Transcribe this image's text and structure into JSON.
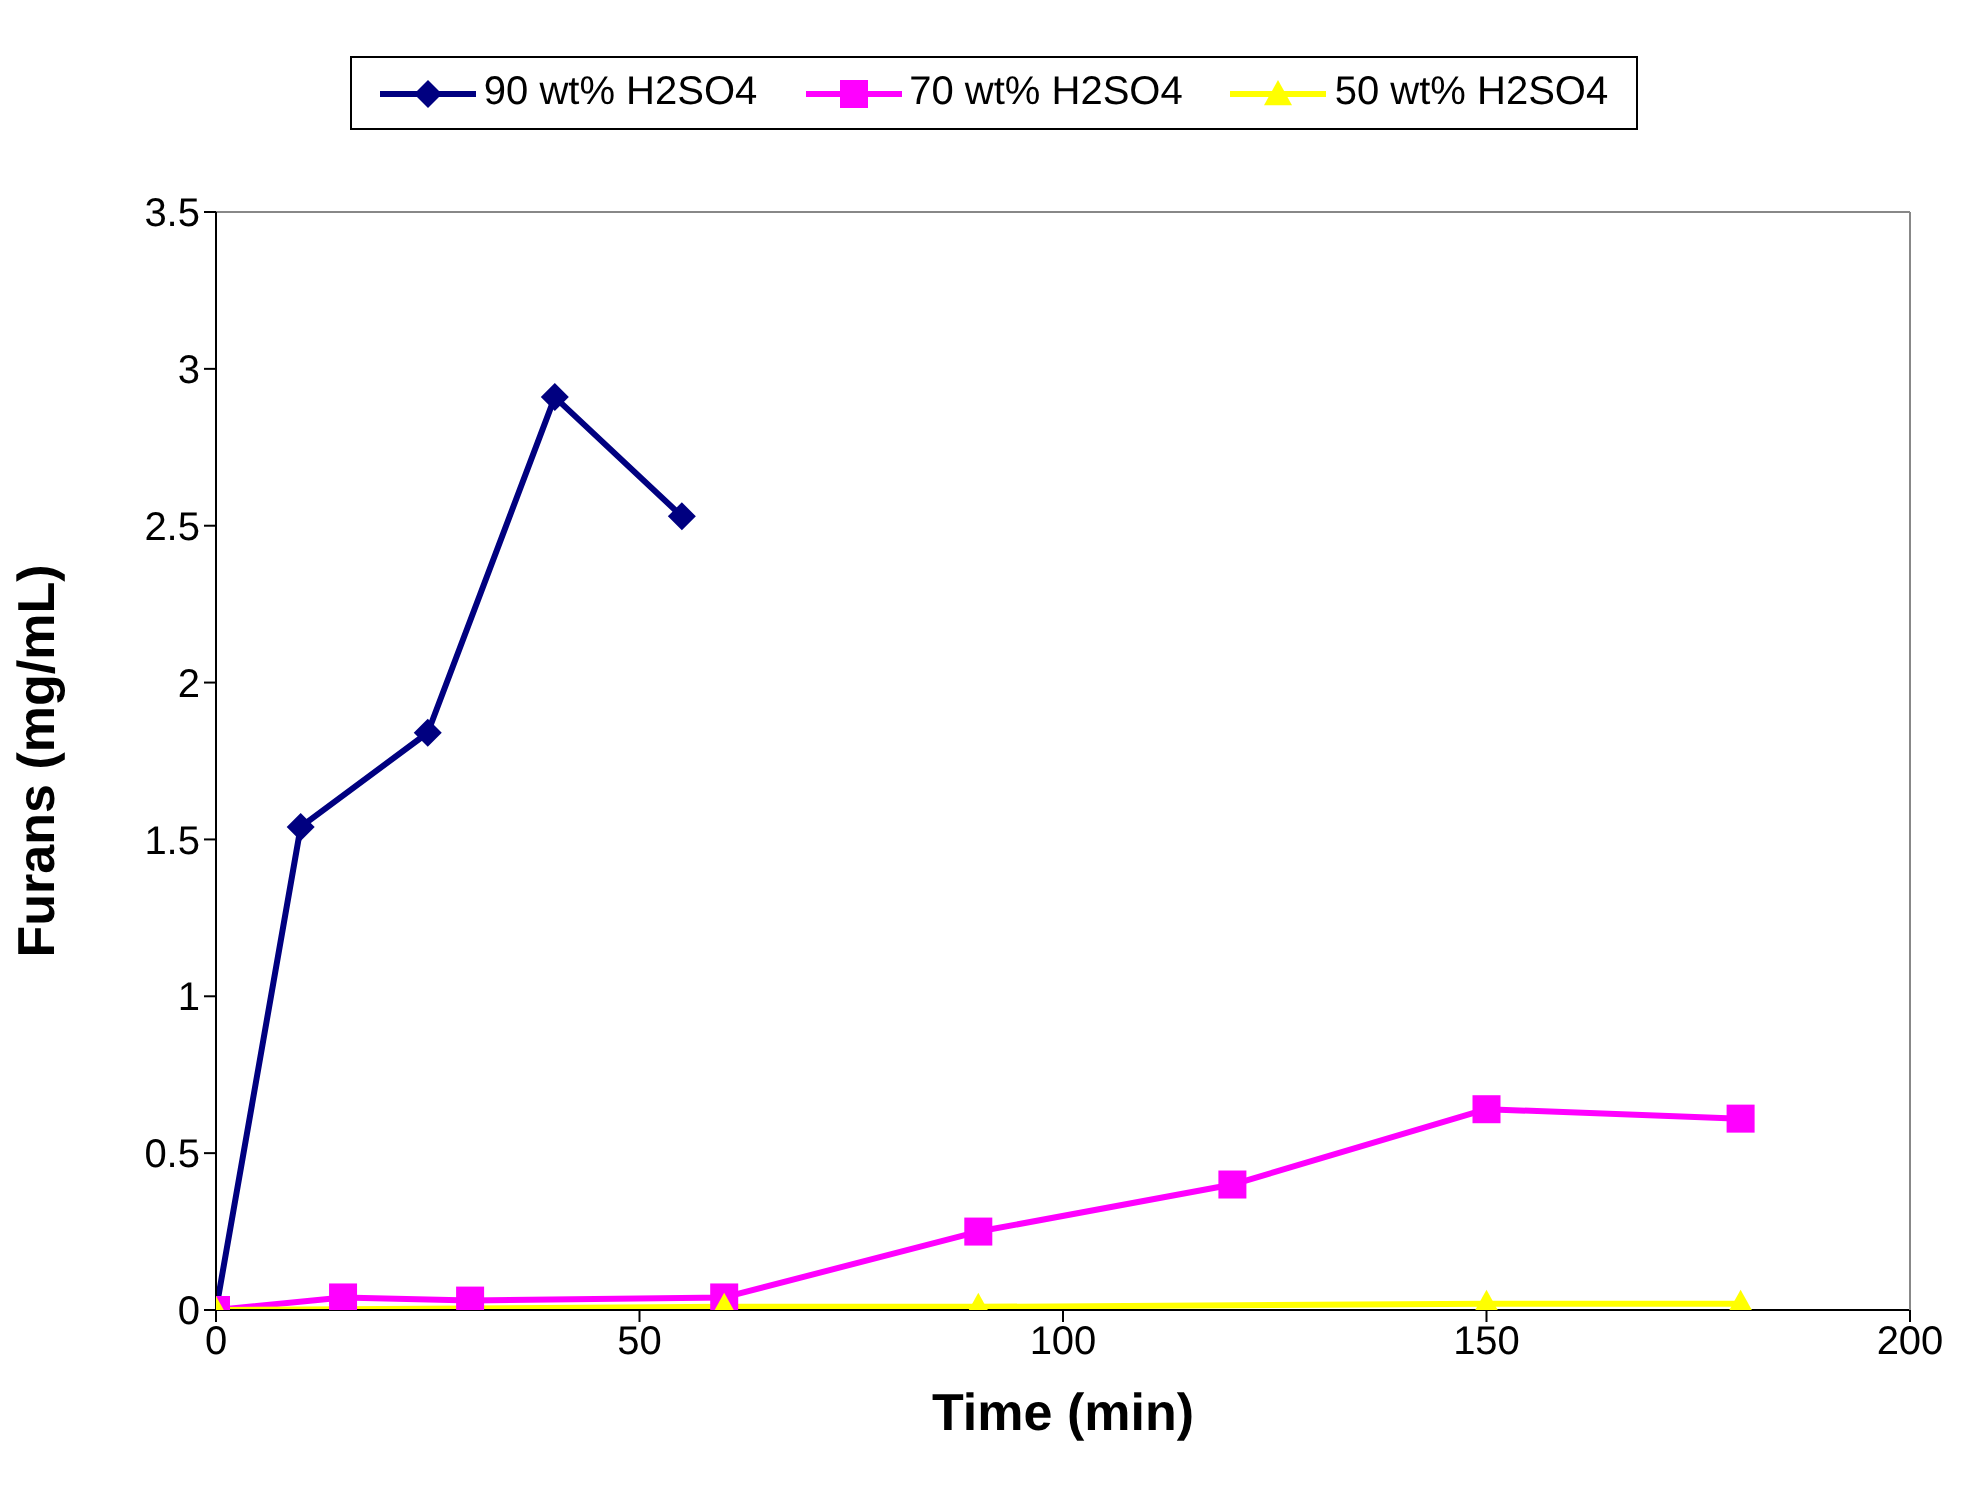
{
  "chart_data": {
    "type": "line",
    "xlabel": "Time (min)",
    "ylabel": "Furans (mg/mL)",
    "xlim": [
      0,
      200
    ],
    "xticks": [
      0,
      50,
      100,
      150,
      200
    ],
    "ylim": [
      0,
      3.5
    ],
    "yticks": [
      0,
      0.5,
      1,
      1.5,
      2,
      2.5,
      3,
      3.5
    ],
    "grid": false,
    "legend": "top",
    "series": [
      {
        "name": "90 wt% H2SO4",
        "color": "#000080",
        "marker": "diamond",
        "x": [
          0,
          10,
          25,
          40,
          55
        ],
        "values": [
          0,
          1.54,
          1.84,
          2.91,
          2.53
        ]
      },
      {
        "name": "70 wt% H2SO4",
        "color": "#ff00ff",
        "marker": "square",
        "x": [
          0,
          15,
          30,
          60,
          90,
          120,
          150,
          180
        ],
        "values": [
          0,
          0.04,
          0.03,
          0.04,
          0.25,
          0.4,
          0.64,
          0.61
        ]
      },
      {
        "name": "50 wt% H2SO4",
        "color": "#ffff00",
        "marker": "triangle",
        "x": [
          0,
          60,
          90,
          150,
          180
        ],
        "values": [
          0,
          0.01,
          0.01,
          0.02,
          0.02
        ]
      }
    ]
  }
}
